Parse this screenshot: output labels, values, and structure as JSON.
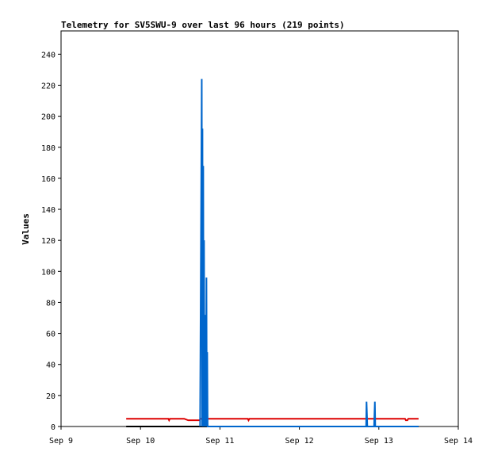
{
  "chart_data": {
    "type": "line",
    "title": "Telemetry for SV5SWU-9 over last 96 hours (219 points)",
    "xlabel": "",
    "ylabel": "Values",
    "x_ticks": [
      "Sep 9",
      "Sep 10",
      "Sep 11",
      "Sep 12",
      "Sep 13",
      "Sep 14"
    ],
    "xlim": [
      0,
      5
    ],
    "ylim": [
      0,
      255
    ],
    "y_ticks": [
      0,
      20,
      40,
      60,
      80,
      100,
      120,
      140,
      160,
      180,
      200,
      220,
      240
    ],
    "grid": false,
    "legend": "none",
    "series": [
      {
        "color": "#dd0000",
        "points": [
          [
            0.82,
            5
          ],
          [
            1.35,
            5
          ],
          [
            1.36,
            4
          ],
          [
            1.37,
            5
          ],
          [
            1.55,
            5
          ],
          [
            1.6,
            4
          ],
          [
            1.72,
            4
          ],
          [
            1.74,
            4
          ],
          [
            1.76,
            5
          ],
          [
            2.35,
            5
          ],
          [
            2.36,
            4
          ],
          [
            2.37,
            5
          ],
          [
            4.33,
            5
          ],
          [
            4.34,
            4
          ],
          [
            4.36,
            4
          ],
          [
            4.37,
            5
          ],
          [
            4.5,
            5
          ]
        ]
      },
      {
        "color": "#000000",
        "points": [
          [
            0.82,
            0
          ],
          [
            4.5,
            0
          ]
        ]
      },
      {
        "color": "#0066cc",
        "points": [
          [
            1.75,
            0
          ],
          [
            1.771,
            224
          ],
          [
            1.776,
            0
          ],
          [
            1.78,
            192
          ],
          [
            1.785,
            0
          ],
          [
            1.79,
            168
          ],
          [
            1.795,
            0
          ],
          [
            1.8,
            120
          ],
          [
            1.805,
            0
          ],
          [
            1.81,
            72
          ],
          [
            1.815,
            0
          ],
          [
            1.82,
            24
          ],
          [
            1.825,
            0
          ],
          [
            1.83,
            96
          ],
          [
            1.835,
            0
          ],
          [
            1.84,
            48
          ],
          [
            1.845,
            0
          ],
          [
            1.85,
            0
          ],
          [
            3.8,
            0
          ],
          [
            3.84,
            0
          ],
          [
            3.845,
            16
          ],
          [
            3.85,
            8
          ],
          [
            3.855,
            0
          ],
          [
            3.94,
            0
          ],
          [
            3.945,
            8
          ],
          [
            3.95,
            16
          ],
          [
            3.955,
            0
          ],
          [
            4.5,
            0
          ]
        ]
      }
    ]
  }
}
